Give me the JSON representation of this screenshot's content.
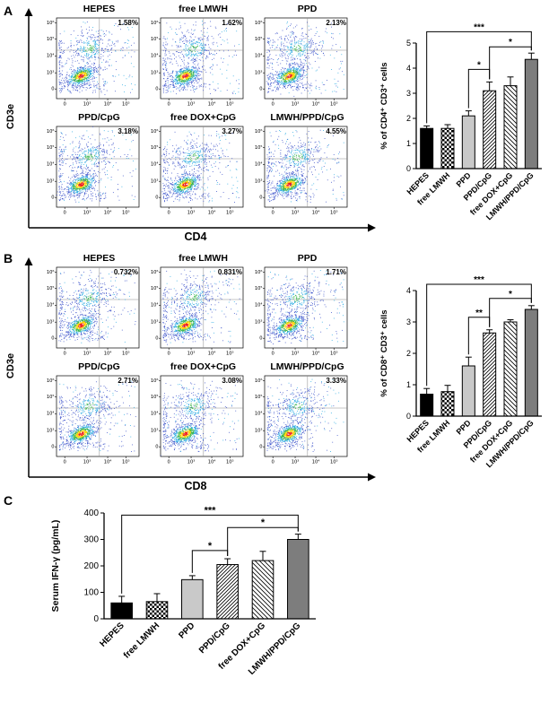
{
  "figure": {
    "panel_a_label": "A",
    "panel_b_label": "B",
    "panel_c_label": "C"
  },
  "panels": {
    "A": {
      "y_axis_label": "CD3e",
      "x_axis_label": "CD4",
      "plots": [
        {
          "title": "HEPES",
          "percent": "1.58%"
        },
        {
          "title": "free LMWH",
          "percent": "1.62%"
        },
        {
          "title": "PPD",
          "percent": "2.13%"
        },
        {
          "title": "PPD/CpG",
          "percent": "3.18%"
        },
        {
          "title": "free DOX+CpG",
          "percent": "3.27%"
        },
        {
          "title": "LMWH/PPD/CpG",
          "percent": "4.55%"
        }
      ]
    },
    "B": {
      "y_axis_label": "CD3e",
      "x_axis_label": "CD8",
      "plots": [
        {
          "title": "HEPES",
          "percent": "0.732%"
        },
        {
          "title": "free LMWH",
          "percent": "0.831%"
        },
        {
          "title": "PPD",
          "percent": "1.71%"
        },
        {
          "title": "PPD/CpG",
          "percent": "2.71%"
        },
        {
          "title": "free DOX+CpG",
          "percent": "3.08%"
        },
        {
          "title": "LMWH/PPD/CpG",
          "percent": "3.33%"
        }
      ]
    }
  },
  "flow_axes": {
    "y_ticks": [
      "10⁶",
      "10⁵",
      "10⁴",
      "10³",
      "0"
    ],
    "x_ticks": [
      "0",
      "10³",
      "10⁴",
      "10⁵"
    ]
  },
  "chart_data": [
    {
      "id": "chartA",
      "type": "bar",
      "ylabel": "% of CD4⁺ CD3⁺ cells",
      "categories": [
        "HEPES",
        "free LMWH",
        "PPD",
        "PPD/CpG",
        "free DOX+CpG",
        "LMWH/PPD/CpG"
      ],
      "values": [
        1.6,
        1.6,
        2.1,
        3.1,
        3.3,
        4.35
      ],
      "errors": [
        0.1,
        0.15,
        0.2,
        0.35,
        0.35,
        0.25
      ],
      "ylim": [
        0,
        5
      ],
      "yticks": [
        0,
        1,
        2,
        3,
        4,
        5
      ],
      "patterns": [
        "solid-black",
        "checker",
        "gray",
        "hatch-fwd",
        "hatch-back",
        "solid-gray-dark"
      ],
      "brackets": [
        {
          "from": 2,
          "to": 3,
          "label": "*",
          "y": 3.95
        },
        {
          "from": 3,
          "to": 5,
          "label": "*",
          "y": 4.85
        },
        {
          "from": 0,
          "to": 5,
          "label": "***",
          "y": 5.45
        }
      ]
    },
    {
      "id": "chartB",
      "type": "bar",
      "ylabel": "% of CD8⁺ CD3⁺ cells",
      "categories": [
        "HEPES",
        "free LMWH",
        "PPD",
        "PPD/CpG",
        "free DOX+CpG",
        "LMWH/PPD/CpG"
      ],
      "values": [
        0.7,
        0.78,
        1.6,
        2.65,
        3.0,
        3.4
      ],
      "errors": [
        0.18,
        0.2,
        0.28,
        0.1,
        0.07,
        0.12
      ],
      "ylim": [
        0,
        4
      ],
      "yticks": [
        0,
        1,
        2,
        3,
        4
      ],
      "patterns": [
        "solid-black",
        "checker",
        "gray",
        "hatch-fwd",
        "hatch-back",
        "solid-gray-dark"
      ],
      "brackets": [
        {
          "from": 2,
          "to": 3,
          "label": "**",
          "y": 3.15
        },
        {
          "from": 3,
          "to": 5,
          "label": "*",
          "y": 3.75
        },
        {
          "from": 0,
          "to": 5,
          "label": "***",
          "y": 4.2
        }
      ]
    },
    {
      "id": "chartC",
      "type": "bar",
      "ylabel": "Serum IFN-γ (pg/mL)",
      "categories": [
        "HEPES",
        "free LMWH",
        "PPD",
        "PPD/CpG",
        "free DOX+CpG",
        "LMWH/PPD/CpG"
      ],
      "values": [
        60,
        65,
        148,
        205,
        220,
        300
      ],
      "errors": [
        25,
        30,
        15,
        22,
        35,
        20
      ],
      "ylim": [
        0,
        400
      ],
      "yticks": [
        0,
        100,
        200,
        300,
        400
      ],
      "patterns": [
        "solid-black",
        "checker",
        "gray",
        "hatch-fwd",
        "hatch-back",
        "solid-gray-dark"
      ],
      "brackets": [
        {
          "from": 2,
          "to": 3,
          "label": "*",
          "y": 258
        },
        {
          "from": 3,
          "to": 5,
          "label": "*",
          "y": 345
        },
        {
          "from": 0,
          "to": 5,
          "label": "***",
          "y": 392
        }
      ]
    }
  ]
}
